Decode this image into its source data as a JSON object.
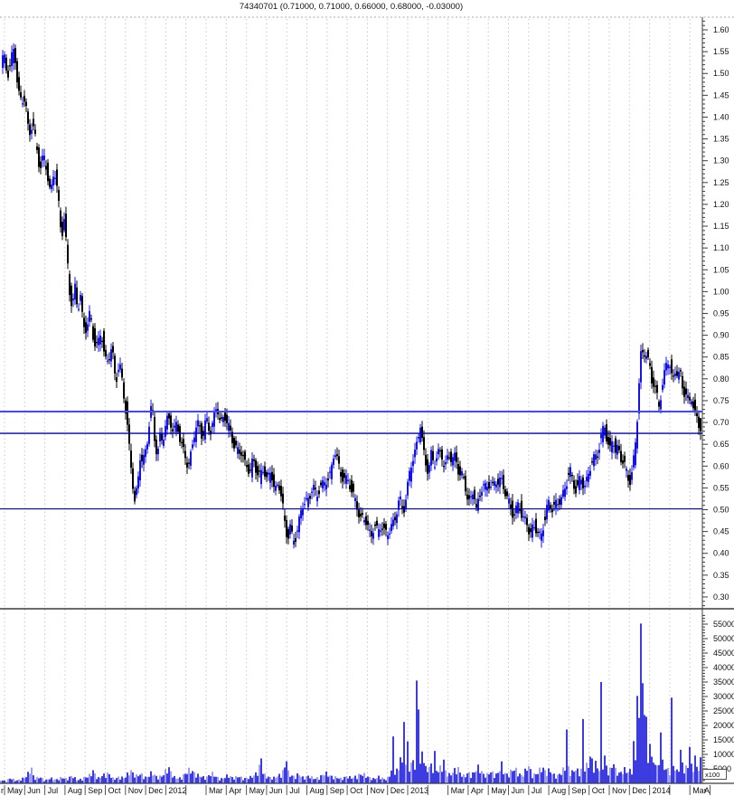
{
  "title": "74340701 (0.71000, 0.71000, 0.66000, 0.68000, -0.03000)",
  "chart_data": {
    "type": "candlestick",
    "instrument": "74340701",
    "quote": {
      "open": "0.71000",
      "high": "0.71000",
      "low": "0.66000",
      "close": "0.68000",
      "change": "-0.03000"
    },
    "panels": [
      "price",
      "volume"
    ],
    "grid": "vertical-monthly-dashed",
    "x_axis": {
      "leading_partial_label": "r",
      "months": [
        "May",
        "Jun",
        "Jul",
        "Aug",
        "Sep",
        "Oct",
        "Nov",
        "Dec",
        "2012",
        "",
        "Mar",
        "Apr",
        "May",
        "Jun",
        "Jul",
        "Aug",
        "Sep",
        "Oct",
        "Nov",
        "Dec",
        "2013",
        "",
        "Mar",
        "Apr",
        "May",
        "Jun",
        "Jul",
        "Aug",
        "Sep",
        "Oct",
        "Nov",
        "Dec",
        "2014",
        "",
        "Mar",
        "A"
      ]
    },
    "price_axis": {
      "min": 0.275,
      "max": 1.625,
      "label_step": 0.05,
      "minor_tick_step": 0.01,
      "labels": [
        "1.60",
        "1.55",
        "1.50",
        "1.45",
        "1.40",
        "1.35",
        "1.30",
        "1.25",
        "1.20",
        "1.15",
        "1.10",
        "1.05",
        "1.00",
        "0.95",
        "0.90",
        "0.85",
        "0.80",
        "0.75",
        "0.70",
        "0.65",
        "0.60",
        "0.55",
        "0.50",
        "0.45",
        "0.40",
        "0.35",
        "0.30"
      ]
    },
    "volume_axis": {
      "min": 0,
      "max": 58000,
      "label_step": 5000,
      "minor_tick_step": 1000,
      "unit": "x100",
      "labels": [
        "55000",
        "50000",
        "45000",
        "40000",
        "35000",
        "30000",
        "25000",
        "20000",
        "15000",
        "10000",
        "5000"
      ]
    },
    "horizontal_lines": [
      {
        "price": 0.725,
        "color": "#4646ff",
        "width": 2
      },
      {
        "price": 0.675,
        "color": "#0000b0",
        "width": 1.4
      },
      {
        "price": 0.502,
        "color": "#0000c8",
        "width": 1.2
      }
    ],
    "price_keypoints": [
      [
        0,
        1.51
      ],
      [
        4,
        1.54
      ],
      [
        8,
        1.5
      ],
      [
        12,
        1.53
      ],
      [
        16,
        1.55
      ],
      [
        20,
        1.47
      ],
      [
        24,
        1.43
      ],
      [
        28,
        1.44
      ],
      [
        32,
        1.36
      ],
      [
        36,
        1.39
      ],
      [
        40,
        1.33
      ],
      [
        44,
        1.29
      ],
      [
        48,
        1.31
      ],
      [
        52,
        1.27
      ],
      [
        56,
        1.23
      ],
      [
        60,
        1.28
      ],
      [
        64,
        1.22
      ],
      [
        68,
        1.13
      ],
      [
        71,
        1.17
      ],
      [
        74,
        1.08
      ],
      [
        77,
        1.0
      ],
      [
        80,
        0.97
      ],
      [
        83,
        1.01
      ],
      [
        86,
        0.95
      ],
      [
        89,
        0.99
      ],
      [
        92,
        0.93
      ],
      [
        96,
        0.91
      ],
      [
        100,
        0.95
      ],
      [
        104,
        0.89
      ],
      [
        108,
        0.87
      ],
      [
        112,
        0.91
      ],
      [
        116,
        0.85
      ],
      [
        120,
        0.84
      ],
      [
        124,
        0.87
      ],
      [
        128,
        0.8
      ],
      [
        132,
        0.83
      ],
      [
        136,
        0.78
      ],
      [
        140,
        0.72
      ],
      [
        143,
        0.64
      ],
      [
        146,
        0.57
      ],
      [
        149,
        0.52
      ],
      [
        152,
        0.56
      ],
      [
        155,
        0.62
      ],
      [
        158,
        0.6
      ],
      [
        162,
        0.65
      ],
      [
        165,
        0.7
      ],
      [
        168,
        0.74
      ],
      [
        171,
        0.66
      ],
      [
        174,
        0.63
      ],
      [
        177,
        0.67
      ],
      [
        180,
        0.65
      ],
      [
        183,
        0.69
      ],
      [
        186,
        0.72
      ],
      [
        189,
        0.7
      ],
      [
        192,
        0.67
      ],
      [
        196,
        0.7
      ],
      [
        200,
        0.66
      ],
      [
        204,
        0.62
      ],
      [
        208,
        0.6
      ],
      [
        212,
        0.64
      ],
      [
        216,
        0.68
      ],
      [
        220,
        0.7
      ],
      [
        224,
        0.67
      ],
      [
        228,
        0.7
      ],
      [
        232,
        0.68
      ],
      [
        236,
        0.71
      ],
      [
        240,
        0.73
      ],
      [
        244,
        0.7
      ],
      [
        248,
        0.72
      ],
      [
        252,
        0.69
      ],
      [
        256,
        0.67
      ],
      [
        260,
        0.65
      ],
      [
        264,
        0.62
      ],
      [
        268,
        0.64
      ],
      [
        272,
        0.6
      ],
      [
        276,
        0.58
      ],
      [
        280,
        0.62
      ],
      [
        284,
        0.59
      ],
      [
        288,
        0.57
      ],
      [
        292,
        0.6
      ],
      [
        296,
        0.57
      ],
      [
        300,
        0.58
      ],
      [
        304,
        0.55
      ],
      [
        308,
        0.56
      ],
      [
        312,
        0.52
      ],
      [
        315,
        0.47
      ],
      [
        318,
        0.44
      ],
      [
        321,
        0.46
      ],
      [
        324,
        0.42
      ],
      [
        327,
        0.44
      ],
      [
        330,
        0.47
      ],
      [
        334,
        0.5
      ],
      [
        338,
        0.52
      ],
      [
        342,
        0.53
      ],
      [
        346,
        0.55
      ],
      [
        350,
        0.53
      ],
      [
        354,
        0.56
      ],
      [
        358,
        0.55
      ],
      [
        362,
        0.57
      ],
      [
        366,
        0.59
      ],
      [
        370,
        0.63
      ],
      [
        374,
        0.61
      ],
      [
        378,
        0.58
      ],
      [
        382,
        0.56
      ],
      [
        386,
        0.57
      ],
      [
        390,
        0.54
      ],
      [
        394,
        0.51
      ],
      [
        398,
        0.48
      ],
      [
        402,
        0.49
      ],
      [
        406,
        0.46
      ],
      [
        410,
        0.44
      ],
      [
        414,
        0.47
      ],
      [
        418,
        0.44
      ],
      [
        422,
        0.47
      ],
      [
        426,
        0.45
      ],
      [
        430,
        0.44
      ],
      [
        434,
        0.47
      ],
      [
        438,
        0.49
      ],
      [
        442,
        0.52
      ],
      [
        446,
        0.5
      ],
      [
        450,
        0.54
      ],
      [
        454,
        0.59
      ],
      [
        458,
        0.63
      ],
      [
        462,
        0.66
      ],
      [
        465,
        0.69
      ],
      [
        468,
        0.64
      ],
      [
        471,
        0.61
      ],
      [
        474,
        0.59
      ],
      [
        477,
        0.62
      ],
      [
        480,
        0.6
      ],
      [
        484,
        0.64
      ],
      [
        488,
        0.62
      ],
      [
        492,
        0.6
      ],
      [
        496,
        0.63
      ],
      [
        500,
        0.61
      ],
      [
        504,
        0.62
      ],
      [
        508,
        0.59
      ],
      [
        512,
        0.57
      ],
      [
        516,
        0.54
      ],
      [
        520,
        0.52
      ],
      [
        524,
        0.54
      ],
      [
        527,
        0.5
      ],
      [
        530,
        0.53
      ],
      [
        534,
        0.56
      ],
      [
        538,
        0.54
      ],
      [
        542,
        0.57
      ],
      [
        546,
        0.55
      ],
      [
        550,
        0.56
      ],
      [
        554,
        0.58
      ],
      [
        558,
        0.54
      ],
      [
        562,
        0.52
      ],
      [
        566,
        0.5
      ],
      [
        570,
        0.49
      ],
      [
        574,
        0.51
      ],
      [
        578,
        0.49
      ],
      [
        582,
        0.47
      ],
      [
        586,
        0.44
      ],
      [
        590,
        0.47
      ],
      [
        594,
        0.45
      ],
      [
        598,
        0.43
      ],
      [
        602,
        0.48
      ],
      [
        606,
        0.51
      ],
      [
        610,
        0.5
      ],
      [
        614,
        0.52
      ],
      [
        618,
        0.51
      ],
      [
        622,
        0.53
      ],
      [
        626,
        0.56
      ],
      [
        630,
        0.59
      ],
      [
        634,
        0.56
      ],
      [
        638,
        0.55
      ],
      [
        642,
        0.57
      ],
      [
        646,
        0.55
      ],
      [
        650,
        0.58
      ],
      [
        654,
        0.6
      ],
      [
        658,
        0.62
      ],
      [
        662,
        0.64
      ],
      [
        666,
        0.67
      ],
      [
        669,
        0.69
      ],
      [
        672,
        0.66
      ],
      [
        675,
        0.64
      ],
      [
        678,
        0.66
      ],
      [
        681,
        0.63
      ],
      [
        684,
        0.65
      ],
      [
        687,
        0.62
      ],
      [
        690,
        0.6
      ],
      [
        694,
        0.58
      ],
      [
        698,
        0.57
      ],
      [
        701,
        0.61
      ],
      [
        704,
        0.67
      ],
      [
        706,
        0.75
      ],
      [
        708,
        0.84
      ],
      [
        710,
        0.88
      ],
      [
        712,
        0.84
      ],
      [
        714,
        0.87
      ],
      [
        716,
        0.83
      ],
      [
        718,
        0.85
      ],
      [
        720,
        0.81
      ],
      [
        723,
        0.79
      ],
      [
        726,
        0.76
      ],
      [
        729,
        0.74
      ],
      [
        732,
        0.78
      ],
      [
        735,
        0.81
      ],
      [
        738,
        0.84
      ],
      [
        741,
        0.83
      ],
      [
        744,
        0.8
      ],
      [
        747,
        0.82
      ],
      [
        750,
        0.8
      ],
      [
        753,
        0.81
      ],
      [
        756,
        0.78
      ],
      [
        759,
        0.76
      ],
      [
        762,
        0.74
      ],
      [
        765,
        0.76
      ],
      [
        768,
        0.73
      ],
      [
        771,
        0.71
      ],
      [
        774,
        0.68
      ]
    ],
    "volume_keypoints": [
      [
        0,
        1200
      ],
      [
        6,
        800
      ],
      [
        12,
        1800
      ],
      [
        18,
        900
      ],
      [
        24,
        1500
      ],
      [
        30,
        2500
      ],
      [
        34,
        6000
      ],
      [
        38,
        1500
      ],
      [
        44,
        2200
      ],
      [
        50,
        1000
      ],
      [
        56,
        1800
      ],
      [
        62,
        1200
      ],
      [
        68,
        2000
      ],
      [
        74,
        1500
      ],
      [
        80,
        2600
      ],
      [
        86,
        1000
      ],
      [
        92,
        1800
      ],
      [
        98,
        2400
      ],
      [
        103,
        4200
      ],
      [
        108,
        1600
      ],
      [
        114,
        2800
      ],
      [
        120,
        3400
      ],
      [
        126,
        1400
      ],
      [
        132,
        2200
      ],
      [
        138,
        1800
      ],
      [
        144,
        4500
      ],
      [
        150,
        2500
      ],
      [
        156,
        3200
      ],
      [
        162,
        1800
      ],
      [
        168,
        3800
      ],
      [
        174,
        2000
      ],
      [
        180,
        2600
      ],
      [
        186,
        5600
      ],
      [
        192,
        2200
      ],
      [
        198,
        1600
      ],
      [
        204,
        3000
      ],
      [
        210,
        4800
      ],
      [
        216,
        3200
      ],
      [
        222,
        2400
      ],
      [
        228,
        1800
      ],
      [
        234,
        3600
      ],
      [
        240,
        2000
      ],
      [
        246,
        1500
      ],
      [
        252,
        2800
      ],
      [
        258,
        1800
      ],
      [
        264,
        2400
      ],
      [
        270,
        1600
      ],
      [
        276,
        2000
      ],
      [
        282,
        2800
      ],
      [
        288,
        8600
      ],
      [
        292,
        3000
      ],
      [
        296,
        2200
      ],
      [
        302,
        1800
      ],
      [
        308,
        2600
      ],
      [
        312,
        3400
      ],
      [
        316,
        7600
      ],
      [
        320,
        3000
      ],
      [
        326,
        2200
      ],
      [
        330,
        3200
      ],
      [
        336,
        1800
      ],
      [
        342,
        2600
      ],
      [
        348,
        1500
      ],
      [
        354,
        2200
      ],
      [
        360,
        3600
      ],
      [
        366,
        2400
      ],
      [
        372,
        2000
      ],
      [
        378,
        1600
      ],
      [
        384,
        2400
      ],
      [
        390,
        1800
      ],
      [
        396,
        2800
      ],
      [
        402,
        3200
      ],
      [
        408,
        2000
      ],
      [
        414,
        1500
      ],
      [
        420,
        2400
      ],
      [
        426,
        1200
      ],
      [
        430,
        2000
      ],
      [
        435,
        16200
      ],
      [
        440,
        4000
      ],
      [
        443,
        9000
      ],
      [
        447,
        21200
      ],
      [
        450,
        14500
      ],
      [
        453,
        6000
      ],
      [
        456,
        8000
      ],
      [
        459,
        5000
      ],
      [
        461,
        35500
      ],
      [
        463,
        25500
      ],
      [
        466,
        11000
      ],
      [
        469,
        7000
      ],
      [
        472,
        4500
      ],
      [
        476,
        6000
      ],
      [
        480,
        11200
      ],
      [
        484,
        4000
      ],
      [
        487,
        5200
      ],
      [
        490,
        8200
      ],
      [
        494,
        3500
      ],
      [
        498,
        2800
      ],
      [
        502,
        4200
      ],
      [
        506,
        5600
      ],
      [
        510,
        3000
      ],
      [
        514,
        2400
      ],
      [
        518,
        3600
      ],
      [
        522,
        2800
      ],
      [
        526,
        4400
      ],
      [
        530,
        5800
      ],
      [
        534,
        3200
      ],
      [
        538,
        2600
      ],
      [
        542,
        4000
      ],
      [
        546,
        3400
      ],
      [
        550,
        2800
      ],
      [
        554,
        7600
      ],
      [
        558,
        3600
      ],
      [
        562,
        2800
      ],
      [
        566,
        4400
      ],
      [
        570,
        5000
      ],
      [
        574,
        3200
      ],
      [
        578,
        2600
      ],
      [
        582,
        4800
      ],
      [
        585,
        6200
      ],
      [
        588,
        3400
      ],
      [
        592,
        2800
      ],
      [
        596,
        4200
      ],
      [
        600,
        5600
      ],
      [
        604,
        3600
      ],
      [
        608,
        4600
      ],
      [
        612,
        3000
      ],
      [
        616,
        2400
      ],
      [
        620,
        3400
      ],
      [
        624,
        5000
      ],
      [
        627,
        18600
      ],
      [
        630,
        4800
      ],
      [
        634,
        3600
      ],
      [
        637,
        5200
      ],
      [
        641,
        3400
      ],
      [
        645,
        22200
      ],
      [
        648,
        6000
      ],
      [
        652,
        9200
      ],
      [
        655,
        8600
      ],
      [
        658,
        7800
      ],
      [
        661,
        5000
      ],
      [
        665,
        35000
      ],
      [
        668,
        9600
      ],
      [
        671,
        5400
      ],
      [
        674,
        4200
      ],
      [
        678,
        6600
      ],
      [
        682,
        4000
      ],
      [
        686,
        3200
      ],
      [
        690,
        5000
      ],
      [
        694,
        3800
      ],
      [
        698,
        4400
      ],
      [
        700,
        14600
      ],
      [
        703,
        8000
      ],
      [
        705,
        30200
      ],
      [
        707,
        22600
      ],
      [
        709,
        55200
      ],
      [
        711,
        34600
      ],
      [
        713,
        23600
      ],
      [
        715,
        23000
      ],
      [
        718,
        13600
      ],
      [
        721,
        9200
      ],
      [
        724,
        6400
      ],
      [
        727,
        5600
      ],
      [
        730,
        17600
      ],
      [
        733,
        8200
      ],
      [
        736,
        5200
      ],
      [
        740,
        4400
      ],
      [
        743,
        29600
      ],
      [
        746,
        6200
      ],
      [
        749,
        4000
      ],
      [
        752,
        11600
      ],
      [
        755,
        7200
      ],
      [
        758,
        5000
      ],
      [
        762,
        12600
      ],
      [
        765,
        6800
      ],
      [
        768,
        9600
      ],
      [
        771,
        5400
      ],
      [
        774,
        9000
      ]
    ],
    "colors": {
      "up_candle": "#1414e6",
      "down_candle": "#000000",
      "volume_bar": "#0d0dd8",
      "volume_bar_light": "#8585ef",
      "grid": "#c9c9c9",
      "axis": "#3c3c3c",
      "label": "#111111",
      "background": "#ffffff"
    }
  }
}
